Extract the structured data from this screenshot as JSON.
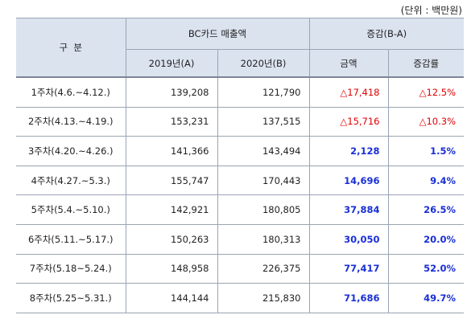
{
  "unit_note": "(단위 : 백만원)",
  "header": {
    "category": "구  분",
    "bc_sales": "BC카드 매출액",
    "change": "증감(B-A)",
    "y2019": "2019년(A)",
    "y2020": "2020년(B)",
    "amount": "금액",
    "rate": "증감률"
  },
  "rows": [
    {
      "week": "1주차(4.6.~4.12.)",
      "a": "139,208",
      "b": "121,790",
      "amount": "△17,418",
      "rate": "△12.5%",
      "sign": "neg"
    },
    {
      "week": "2주차(4.13.~4.19.)",
      "a": "153,231",
      "b": "137,515",
      "amount": "△15,716",
      "rate": "△10.3%",
      "sign": "neg"
    },
    {
      "week": "3주차(4.20.~4.26.)",
      "a": "141,366",
      "b": "143,494",
      "amount": "2,128",
      "rate": "1.5%",
      "sign": "pos"
    },
    {
      "week": "4주차(4.27.~5.3.)",
      "a": "155,747",
      "b": "170,443",
      "amount": "14,696",
      "rate": "9.4%",
      "sign": "pos"
    },
    {
      "week": "5주차(5.4.~5.10.)",
      "a": "142,921",
      "b": "180,805",
      "amount": "37,884",
      "rate": "26.5%",
      "sign": "pos"
    },
    {
      "week": "6주차(5.11.~5.17.)",
      "a": "150,263",
      "b": "180,313",
      "amount": "30,050",
      "rate": "20.0%",
      "sign": "pos"
    },
    {
      "week": "7주차(5.18~5.24.)",
      "a": "148,958",
      "b": "226,375",
      "amount": "77,417",
      "rate": "52.0%",
      "sign": "pos"
    },
    {
      "week": "8주차(5.25~5.31.)",
      "a": "144,144",
      "b": "215,830",
      "amount": "71,686",
      "rate": "49.7%",
      "sign": "pos"
    }
  ]
}
